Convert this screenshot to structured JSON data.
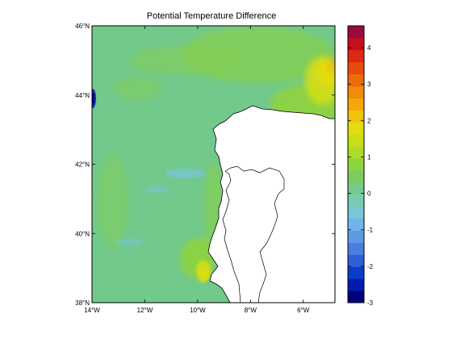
{
  "figure": {
    "title": "Potential Temperature Difference"
  },
  "map": {
    "lon_range": [
      -14,
      -4.8
    ],
    "lat_range": [
      38,
      46
    ],
    "x_ticks": [
      {
        "lon": -14,
        "label": "14°W"
      },
      {
        "lon": -12,
        "label": "12°W"
      },
      {
        "lon": -10,
        "label": "10°W"
      },
      {
        "lon": -8,
        "label": "8°W"
      },
      {
        "lon": -6,
        "label": "6°W"
      }
    ],
    "y_ticks": [
      {
        "lat": 38,
        "label": "38°N"
      },
      {
        "lat": 40,
        "label": "40°N"
      },
      {
        "lat": 42,
        "label": "42°N"
      },
      {
        "lat": 44,
        "label": "44°N"
      },
      {
        "lat": 46,
        "label": "46°N"
      }
    ],
    "land_color": "#ffffff",
    "ocean_base_color": "#72c98c"
  },
  "colorbar": {
    "range": [
      -3,
      4.6
    ],
    "ticks": [
      {
        "value": 4,
        "label": "4"
      },
      {
        "value": 3,
        "label": "3"
      },
      {
        "value": 2,
        "label": "2"
      },
      {
        "value": 1,
        "label": "1"
      },
      {
        "value": 0,
        "label": "0"
      },
      {
        "value": -1,
        "label": "-1"
      },
      {
        "value": -2,
        "label": "-2"
      },
      {
        "value": -3,
        "label": "-3"
      }
    ],
    "colors": [
      "#00007a",
      "#001bb0",
      "#0a3ec9",
      "#2f5fd6",
      "#4a7fdf",
      "#5d9ae6",
      "#6fb4ea",
      "#78c6d8",
      "#78cbb0",
      "#76c98c",
      "#7ccc62",
      "#8fd33e",
      "#aedb2a",
      "#cadd1b",
      "#e2dc10",
      "#efc40c",
      "#f3a70b",
      "#f28a0b",
      "#ee6b0b",
      "#e84b0d",
      "#db2a12",
      "#c5101a",
      "#9a0a3a"
    ]
  }
}
